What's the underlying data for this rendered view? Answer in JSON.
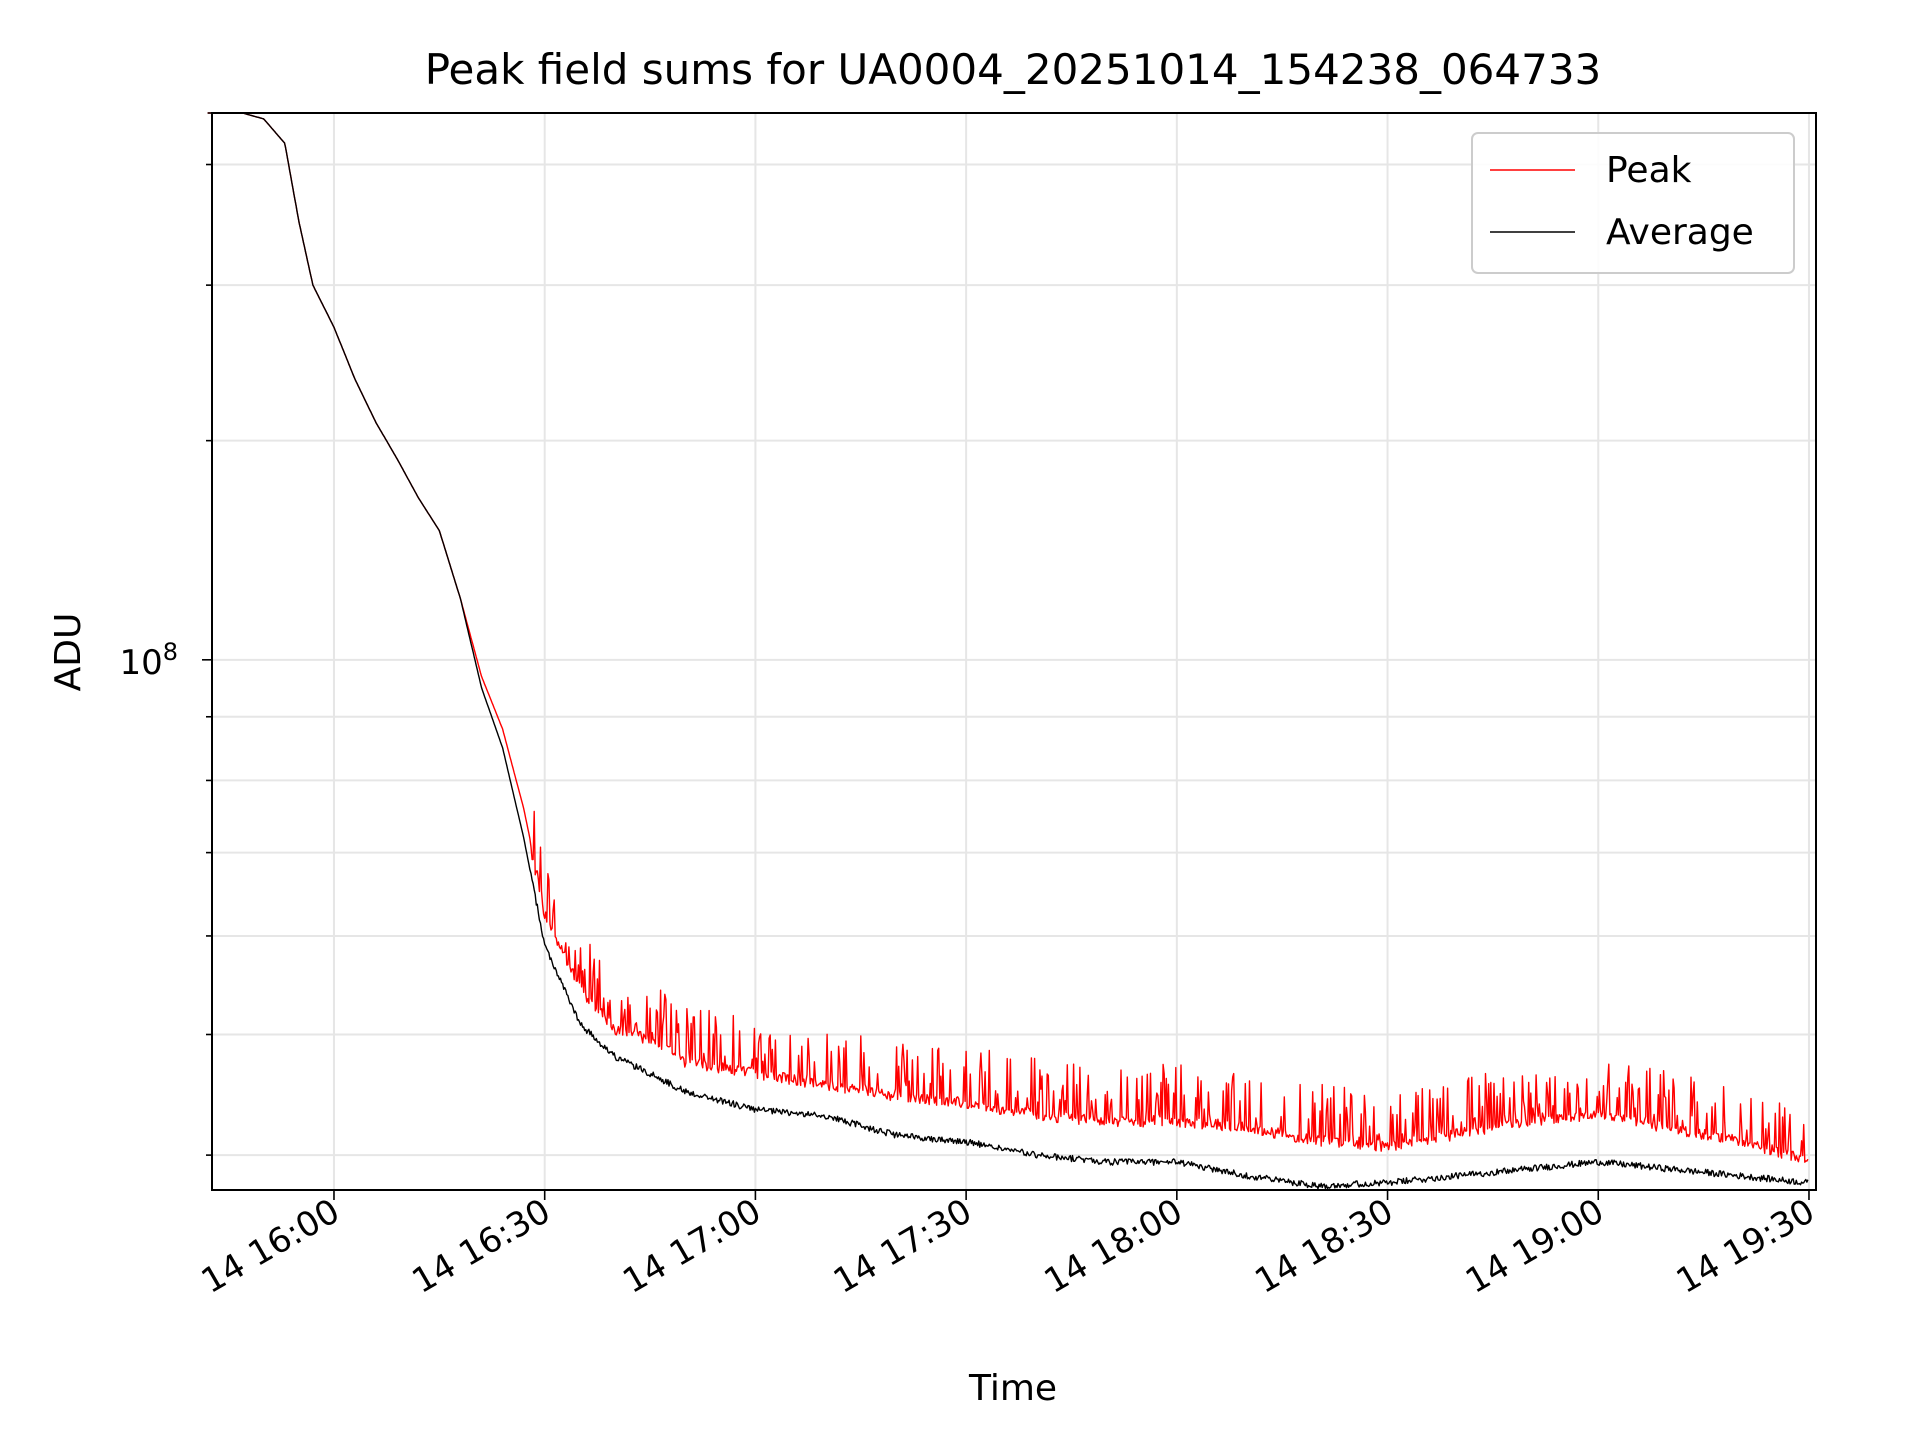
{
  "chart_data": {
    "type": "line",
    "title": "Peak field sums for UA0004_20251014_154238_064733",
    "xlabel": "Time",
    "ylabel": "ADU",
    "yscale": "log",
    "grid": true,
    "legend_position": "top-right",
    "xlim": [
      "2025-10-14 15:42:38",
      "2025-10-14 19:31:00"
    ],
    "ylim": [
      37500000,
      275000000
    ],
    "x_tick_labels": [
      "14 16:00",
      "14 16:30",
      "14 17:00",
      "14 17:30",
      "14 18:00",
      "14 18:30",
      "14 19:00",
      "14 19:30"
    ],
    "y_tick_labels": [
      {
        "base": "10",
        "exp": "8",
        "value": 100000000
      }
    ],
    "series": [
      {
        "name": "Peak",
        "color": "#ff0000",
        "x": [
          "15:42",
          "15:47",
          "15:50",
          "15:53",
          "15:55",
          "15:57",
          "16:00",
          "16:03",
          "16:06",
          "16:09",
          "16:12",
          "16:15",
          "16:18",
          "16:21",
          "16:24",
          "16:27",
          "16:30",
          "16:35",
          "16:40",
          "16:45",
          "16:50",
          "17:00",
          "17:10",
          "17:20",
          "17:30",
          "17:40",
          "17:50",
          "18:00",
          "18:10",
          "18:20",
          "18:30",
          "18:40",
          "18:50",
          "19:00",
          "19:10",
          "19:20",
          "19:30"
        ],
        "values": [
          275000000,
          275000000,
          272000000,
          260000000,
          225000000,
          200000000,
          185000000,
          168000000,
          155000000,
          145000000,
          135000000,
          127000000,
          112000000,
          97000000,
          88000000,
          76000000,
          63000000,
          55000000,
          51000000,
          50000000,
          48000000,
          47000000,
          46000000,
          45000000,
          44500000,
          43500000,
          43000000,
          43000000,
          42500000,
          41500000,
          41000000,
          42000000,
          43000000,
          43500000,
          42500000,
          41500000,
          40000000
        ]
      },
      {
        "name": "Average",
        "color": "#000000",
        "x": [
          "15:42",
          "15:47",
          "15:50",
          "15:53",
          "15:55",
          "15:57",
          "16:00",
          "16:03",
          "16:06",
          "16:09",
          "16:12",
          "16:15",
          "16:18",
          "16:21",
          "16:24",
          "16:27",
          "16:30",
          "16:35",
          "16:40",
          "16:45",
          "16:50",
          "17:00",
          "17:10",
          "17:20",
          "17:30",
          "17:40",
          "17:50",
          "18:00",
          "18:10",
          "18:20",
          "18:30",
          "18:40",
          "18:50",
          "19:00",
          "19:10",
          "19:20",
          "19:30"
        ],
        "values": [
          275000000,
          275000000,
          272000000,
          260000000,
          225000000,
          200000000,
          185000000,
          168000000,
          155000000,
          145000000,
          135000000,
          127000000,
          112000000,
          95000000,
          85000000,
          72000000,
          59000000,
          51000000,
          48000000,
          46500000,
          45000000,
          43500000,
          43000000,
          41500000,
          41000000,
          40000000,
          39500000,
          39500000,
          38500000,
          37800000,
          38000000,
          38500000,
          39000000,
          39500000,
          39000000,
          38500000,
          38000000
        ]
      }
    ]
  }
}
